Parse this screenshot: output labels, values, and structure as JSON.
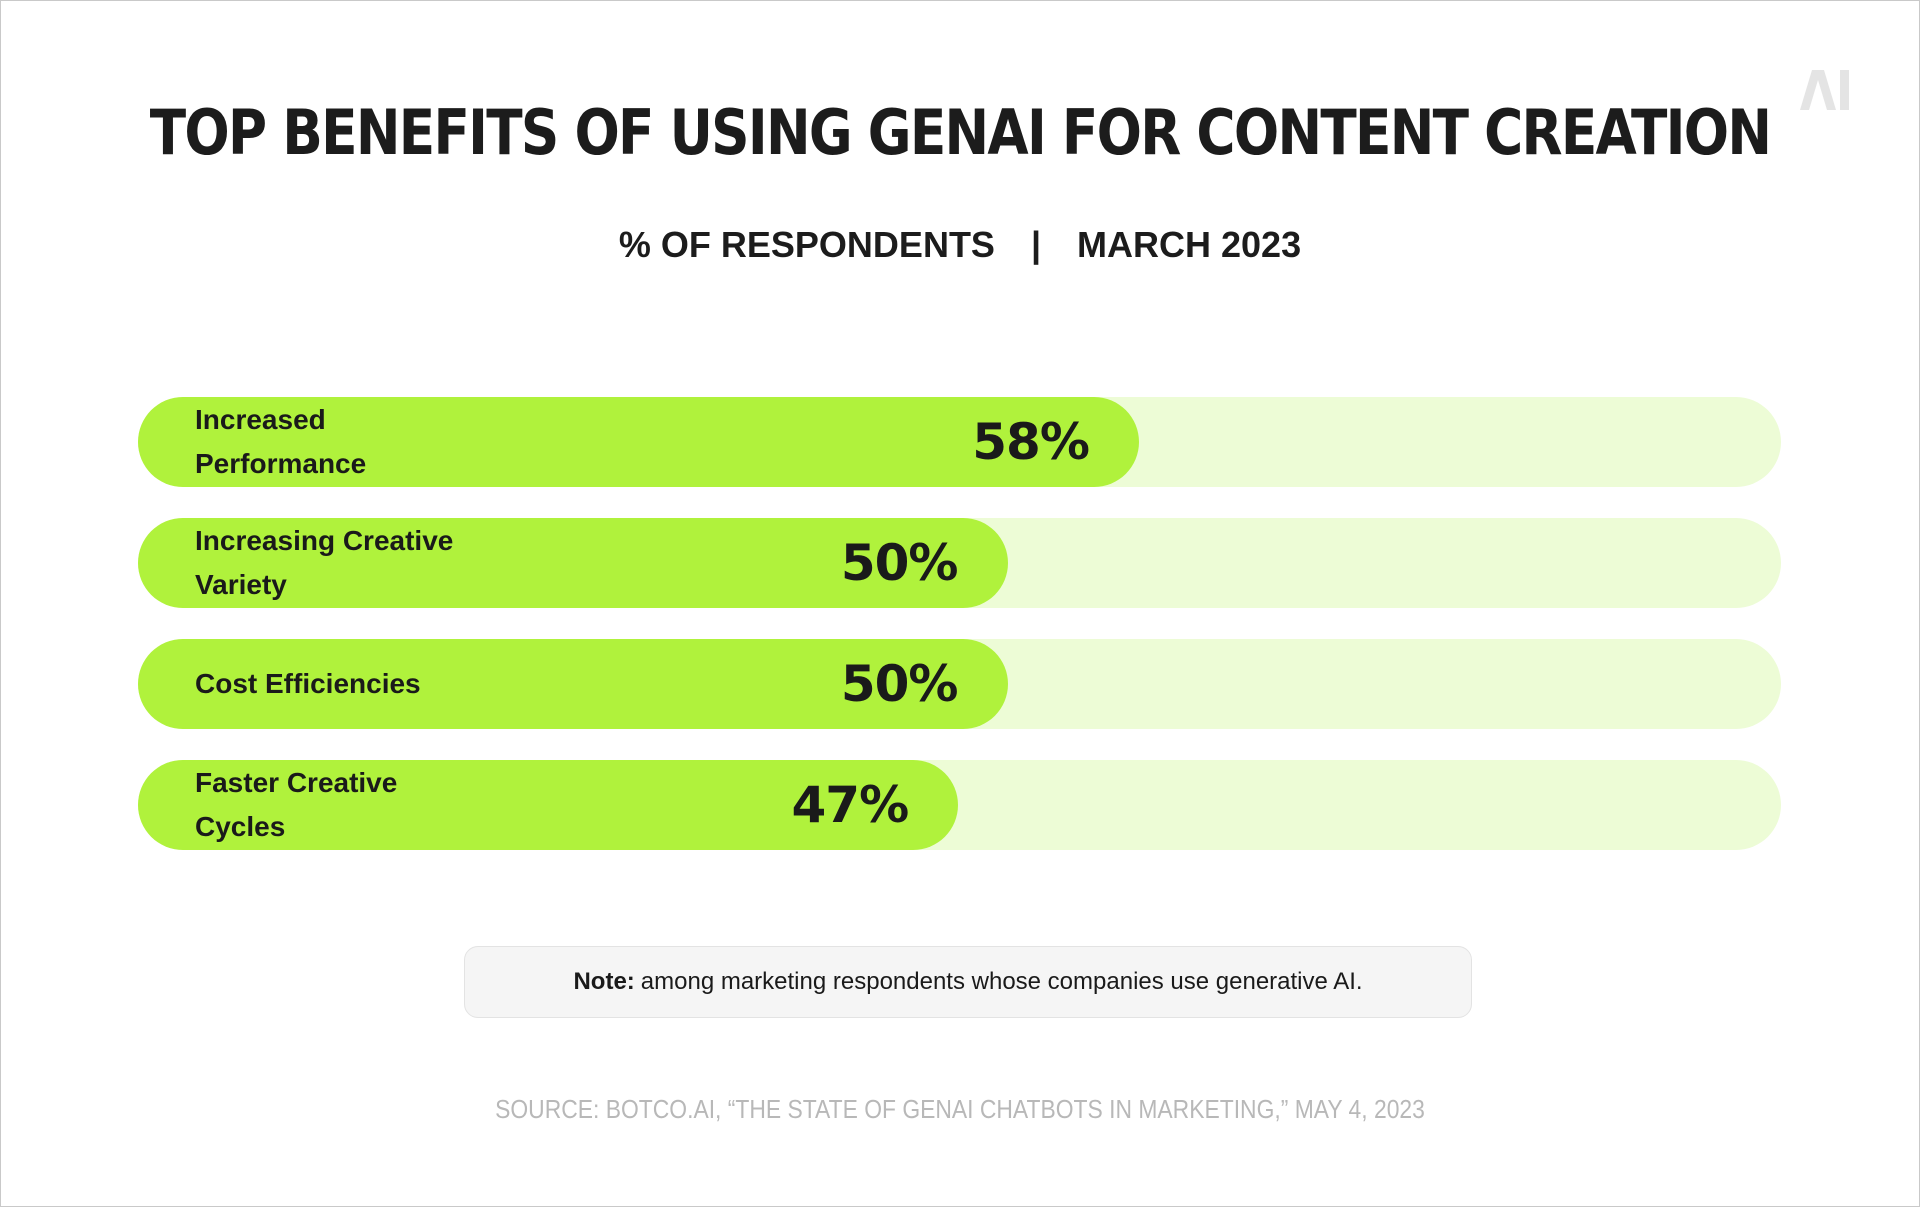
{
  "logo": {
    "text": "AI",
    "color": "#e4e4e4"
  },
  "chart_data": {
    "type": "bar",
    "orientation": "horizontal",
    "title": "TOP BENEFITS OF USING GENAI FOR CONTENT CREATION",
    "subtitle_left": "% OF RESPONDENTS",
    "subtitle_separator": "|",
    "subtitle_right": "MARCH 2023",
    "categories": [
      "Increased Performance",
      "Increasing Creative Variety",
      "Cost Efficiencies",
      "Faster Creative Cycles"
    ],
    "values": [
      58,
      50,
      50,
      47
    ],
    "value_labels": [
      "58%",
      "50%",
      "50%",
      "47%"
    ],
    "xlim": [
      0,
      100
    ],
    "grid": false,
    "legend": "none",
    "colors": {
      "fill": "#b0f23c",
      "track": "#edfcd6"
    }
  },
  "note": {
    "label": "Note:",
    "text": "among marketing respondents whose companies use generative AI."
  },
  "source": "SOURCE: BOTCO.AI, “THE STATE OF GENAI CHATBOTS IN MARKETING,” MAY 4, 2023"
}
